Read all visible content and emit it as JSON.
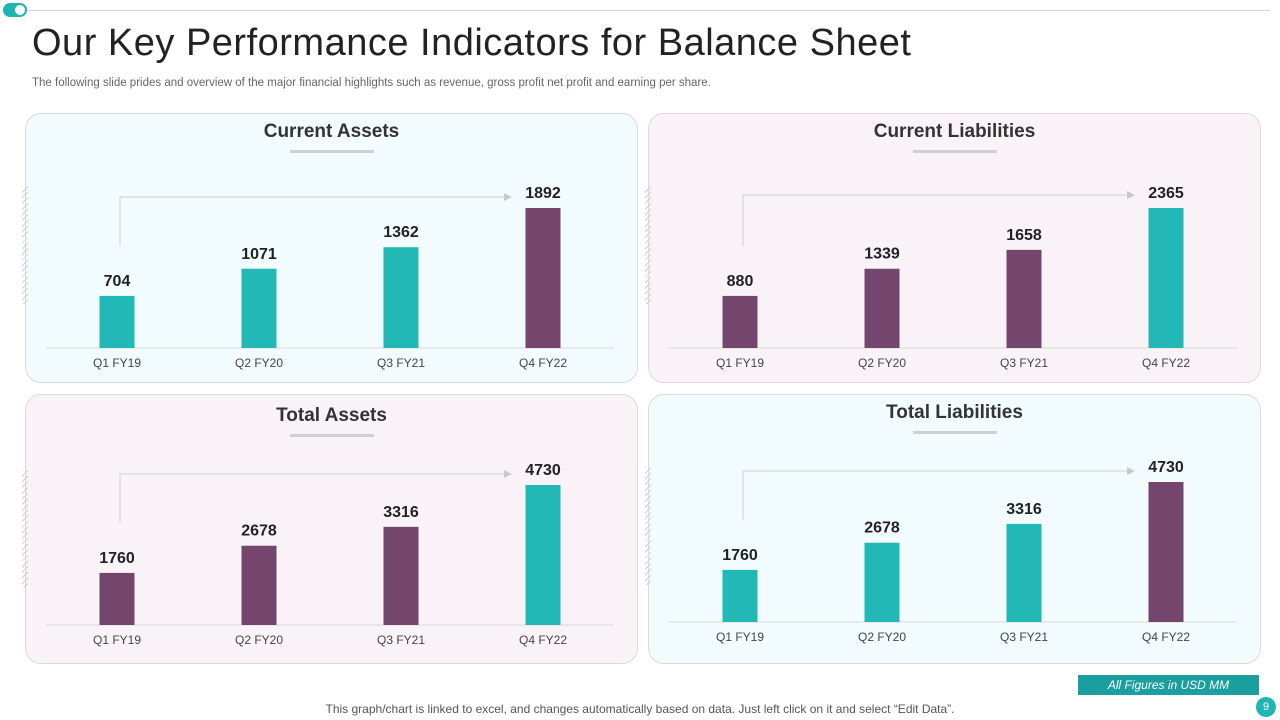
{
  "header": {
    "title": "Our Key Performance Indicators for Balance Sheet",
    "subtitle": "The following slide prides and overview of the major financial highlights such as revenue, gross profit net profit and earning per share."
  },
  "colors": {
    "teal": "#22b8b6",
    "purple": "#74456d"
  },
  "chart_data": [
    {
      "type": "bar",
      "title": "Current Assets",
      "categories": [
        "Q1 FY19",
        "Q2 FY20",
        "Q3 FY21",
        "Q4 FY22"
      ],
      "values": [
        704,
        1071,
        1362,
        1892
      ],
      "bar_colors": [
        "teal",
        "teal",
        "teal",
        "purple"
      ],
      "ylim": [
        0,
        1892
      ]
    },
    {
      "type": "bar",
      "title": "Current Liabilities",
      "categories": [
        "Q1 FY19",
        "Q2 FY20",
        "Q3 FY21",
        "Q4 FY22"
      ],
      "values": [
        880,
        1339,
        1658,
        2365
      ],
      "bar_colors": [
        "purple",
        "purple",
        "purple",
        "teal"
      ],
      "ylim": [
        0,
        2365
      ]
    },
    {
      "type": "bar",
      "title": "Total Assets",
      "categories": [
        "Q1 FY19",
        "Q2 FY20",
        "Q3 FY21",
        "Q4 FY22"
      ],
      "values": [
        1760,
        2678,
        3316,
        4730
      ],
      "bar_colors": [
        "purple",
        "purple",
        "purple",
        "teal"
      ],
      "ylim": [
        0,
        4730
      ]
    },
    {
      "type": "bar",
      "title": "Total Liabilities",
      "categories": [
        "Q1 FY19",
        "Q2 FY20",
        "Q3 FY21",
        "Q4 FY22"
      ],
      "values": [
        1760,
        2678,
        3316,
        4730
      ],
      "bar_colors": [
        "teal",
        "teal",
        "teal",
        "purple"
      ],
      "ylim": [
        0,
        4730
      ]
    }
  ],
  "footer": {
    "badge": "All Figures in USD MM",
    "note": "This graph/chart is linked to excel,  and changes automatically based on data. Just left click on it and select “Edit Data”.",
    "page_number": "9"
  }
}
